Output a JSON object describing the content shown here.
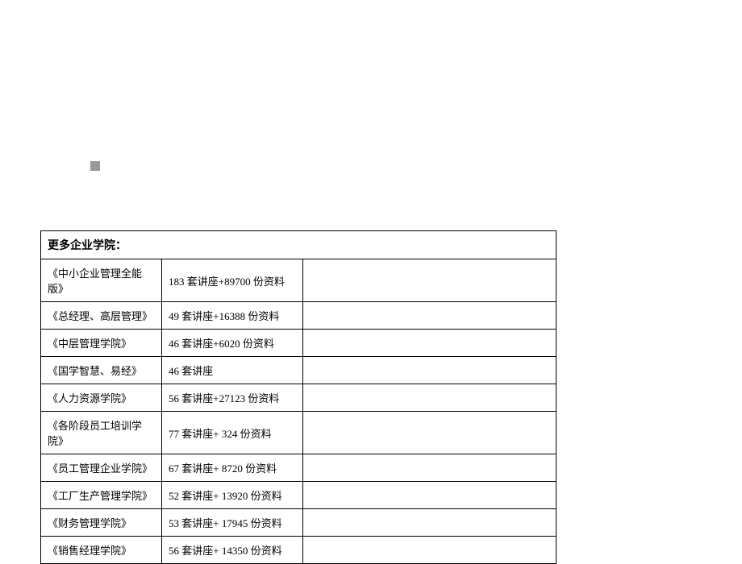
{
  "table": {
    "header": "更多企业学院：",
    "rows": [
      {
        "name": "《中小企业管理全能版》",
        "detail": "183 套讲座+89700 份资料"
      },
      {
        "name": "《总经理、高层管理》",
        "detail": "49 套讲座+16388 份资料"
      },
      {
        "name": "《中层管理学院》",
        "detail": "46 套讲座+6020 份资料"
      },
      {
        "name": "《国学智慧、易经》",
        "detail": "46 套讲座"
      },
      {
        "name": "《人力资源学院》",
        "detail": "56 套讲座+27123 份资料"
      },
      {
        "name": "《各阶段员工培训学院》",
        "detail": "77 套讲座+ 324 份资料"
      },
      {
        "name": "《员工管理企业学院》",
        "detail": "67 套讲座+ 8720 份资料"
      },
      {
        "name": "《工厂生产管理学院》",
        "detail": "52 套讲座+ 13920 份资料"
      },
      {
        "name": "《财务管理学院》",
        "detail": "53 套讲座+ 17945 份资料"
      },
      {
        "name": "《销售经理学院》",
        "detail": "56 套讲座+ 14350 份资料"
      }
    ]
  },
  "colors": {
    "square": "#999999",
    "border": "#000000",
    "background": "#ffffff"
  }
}
